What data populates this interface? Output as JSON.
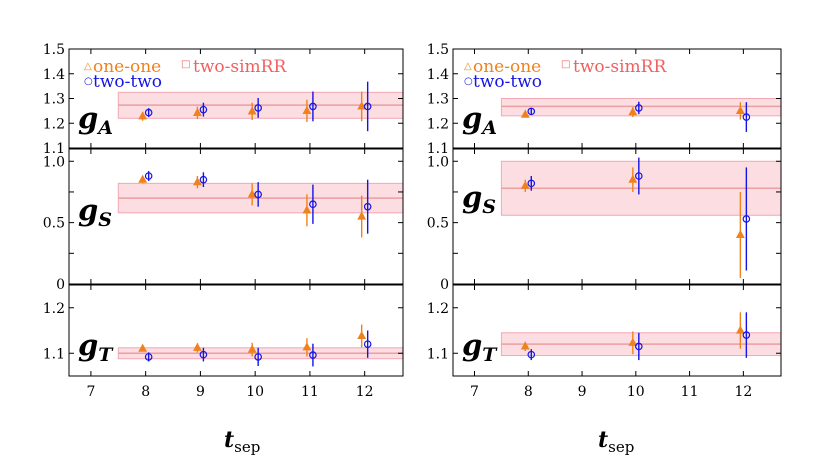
{
  "colors": {
    "oneone": "#f0821e",
    "twotwo": "#1414e6",
    "band_fill": "#fbdde2",
    "band_edge": "#f2a8b4",
    "band_line": "#e8a0a0",
    "twosim": "#f06060",
    "axis": "#000000"
  },
  "legend": {
    "oneone": "one-one",
    "twosim": "two-simRR",
    "twotwo": "two-two"
  },
  "xlabel": {
    "main": "t",
    "sub": "sep"
  },
  "panel_labels": {
    "gA": {
      "main": "g",
      "sub": "A"
    },
    "gS": {
      "main": "g",
      "sub": "S"
    },
    "gT": {
      "main": "g",
      "sub": "T"
    }
  },
  "chart_data": [
    {
      "type": "scatter",
      "name": "left",
      "xlim": [
        6.6,
        12.7
      ],
      "xticks": [
        7,
        8,
        9,
        10,
        11,
        12
      ],
      "subplots": [
        {
          "id": "gA",
          "ylim": [
            1.1,
            1.5
          ],
          "yticks": [
            1.1,
            1.2,
            1.3,
            1.4,
            1.5
          ],
          "yticklabels": [
            "1.1",
            "1.2",
            "1.3",
            "1.4",
            "1.5"
          ],
          "band": {
            "x": [
              7.5,
              12.7
            ],
            "center": 1.273,
            "low": 1.22,
            "high": 1.325
          },
          "series": [
            {
              "name": "one-one",
              "marker": "triangle",
              "x": [
                8,
                9,
                10,
                11,
                12
              ],
              "y": [
                1.228,
                1.242,
                1.248,
                1.25,
                1.268
              ],
              "err": [
                0.018,
                0.025,
                0.035,
                0.045,
                0.06
              ]
            },
            {
              "name": "two-two",
              "marker": "circle",
              "x": [
                8,
                9,
                10,
                11,
                12
              ],
              "y": [
                1.243,
                1.255,
                1.262,
                1.268,
                1.268
              ],
              "err": [
                0.018,
                0.028,
                0.04,
                0.06,
                0.1
              ]
            }
          ]
        },
        {
          "id": "gS",
          "ylim": [
            0,
            1.1
          ],
          "yticks": [
            0,
            0.25,
            0.5,
            0.75,
            1.0
          ],
          "yticklabels": [
            "0",
            "",
            "0.5",
            "",
            "1.0"
          ],
          "band": {
            "x": [
              7.5,
              12.7
            ],
            "center": 0.7,
            "low": 0.58,
            "high": 0.82
          },
          "series": [
            {
              "name": "one-one",
              "marker": "triangle",
              "x": [
                8,
                9,
                10,
                11,
                12
              ],
              "y": [
                0.85,
                0.83,
                0.73,
                0.6,
                0.55
              ],
              "err": [
                0.03,
                0.05,
                0.09,
                0.13,
                0.17
              ]
            },
            {
              "name": "two-two",
              "marker": "circle",
              "x": [
                8,
                9,
                10,
                11,
                12
              ],
              "y": [
                0.88,
                0.85,
                0.73,
                0.65,
                0.63
              ],
              "err": [
                0.04,
                0.06,
                0.1,
                0.16,
                0.22
              ]
            }
          ]
        },
        {
          "id": "gT",
          "ylim": [
            1.05,
            1.25
          ],
          "yticks": [
            1.1,
            1.2
          ],
          "yticklabels": [
            "1.1",
            "1.2"
          ],
          "band": {
            "x": [
              7.5,
              12.7
            ],
            "center": 1.1,
            "low": 1.088,
            "high": 1.112
          },
          "series": [
            {
              "name": "one-one",
              "marker": "triangle",
              "x": [
                8,
                9,
                10,
                11,
                12
              ],
              "y": [
                1.11,
                1.112,
                1.108,
                1.113,
                1.138
              ],
              "err": [
                0.006,
                0.01,
                0.015,
                0.02,
                0.025
              ]
            },
            {
              "name": "two-two",
              "marker": "circle",
              "x": [
                8,
                9,
                10,
                11,
                12
              ],
              "y": [
                1.092,
                1.097,
                1.092,
                1.096,
                1.12
              ],
              "err": [
                0.01,
                0.015,
                0.02,
                0.025,
                0.03
              ]
            }
          ]
        }
      ]
    },
    {
      "type": "scatter",
      "name": "right",
      "xlim": [
        6.6,
        12.7
      ],
      "xticks": [
        7,
        8,
        9,
        10,
        11,
        12
      ],
      "subplots": [
        {
          "id": "gA",
          "ylim": [
            1.1,
            1.5
          ],
          "yticks": [
            1.1,
            1.2,
            1.3,
            1.4,
            1.5
          ],
          "yticklabels": [
            "1.1",
            "1.2",
            "1.3",
            "1.4",
            "1.5"
          ],
          "band": {
            "x": [
              7.5,
              12.7
            ],
            "center": 1.268,
            "low": 1.23,
            "high": 1.3
          },
          "series": [
            {
              "name": "one-one",
              "marker": "triangle",
              "x": [
                8,
                10,
                12
              ],
              "y": [
                1.235,
                1.245,
                1.25
              ],
              "err": [
                0.012,
                0.02,
                0.035
              ]
            },
            {
              "name": "two-two",
              "marker": "circle",
              "x": [
                8,
                10,
                12
              ],
              "y": [
                1.248,
                1.262,
                1.225
              ],
              "err": [
                0.012,
                0.025,
                0.06
              ]
            }
          ]
        },
        {
          "id": "gS",
          "ylim": [
            0,
            1.1
          ],
          "yticks": [
            0,
            0.25,
            0.5,
            0.75,
            1.0
          ],
          "yticklabels": [
            "0",
            "",
            "0.5",
            "",
            "1.0"
          ],
          "band": {
            "x": [
              7.5,
              12.7
            ],
            "center": 0.78,
            "low": 0.56,
            "high": 1.0
          },
          "series": [
            {
              "name": "one-one",
              "marker": "triangle",
              "x": [
                8,
                10,
                12
              ],
              "y": [
                0.8,
                0.85,
                0.4
              ],
              "err": [
                0.05,
                0.1,
                0.35
              ]
            },
            {
              "name": "two-two",
              "marker": "circle",
              "x": [
                8,
                10,
                12
              ],
              "y": [
                0.82,
                0.88,
                0.53
              ],
              "err": [
                0.06,
                0.15,
                0.42
              ]
            }
          ]
        },
        {
          "id": "gT",
          "ylim": [
            1.05,
            1.25
          ],
          "yticks": [
            1.1,
            1.2
          ],
          "yticklabels": [
            "1.1",
            "1.2"
          ],
          "band": {
            "x": [
              7.5,
              12.7
            ],
            "center": 1.12,
            "low": 1.095,
            "high": 1.145
          },
          "series": [
            {
              "name": "one-one",
              "marker": "triangle",
              "x": [
                8,
                10,
                12
              ],
              "y": [
                1.115,
                1.123,
                1.15
              ],
              "err": [
                0.01,
                0.025,
                0.04
              ]
            },
            {
              "name": "two-two",
              "marker": "circle",
              "x": [
                8,
                10,
                12
              ],
              "y": [
                1.097,
                1.115,
                1.14
              ],
              "err": [
                0.012,
                0.03,
                0.05
              ]
            }
          ]
        }
      ]
    }
  ]
}
